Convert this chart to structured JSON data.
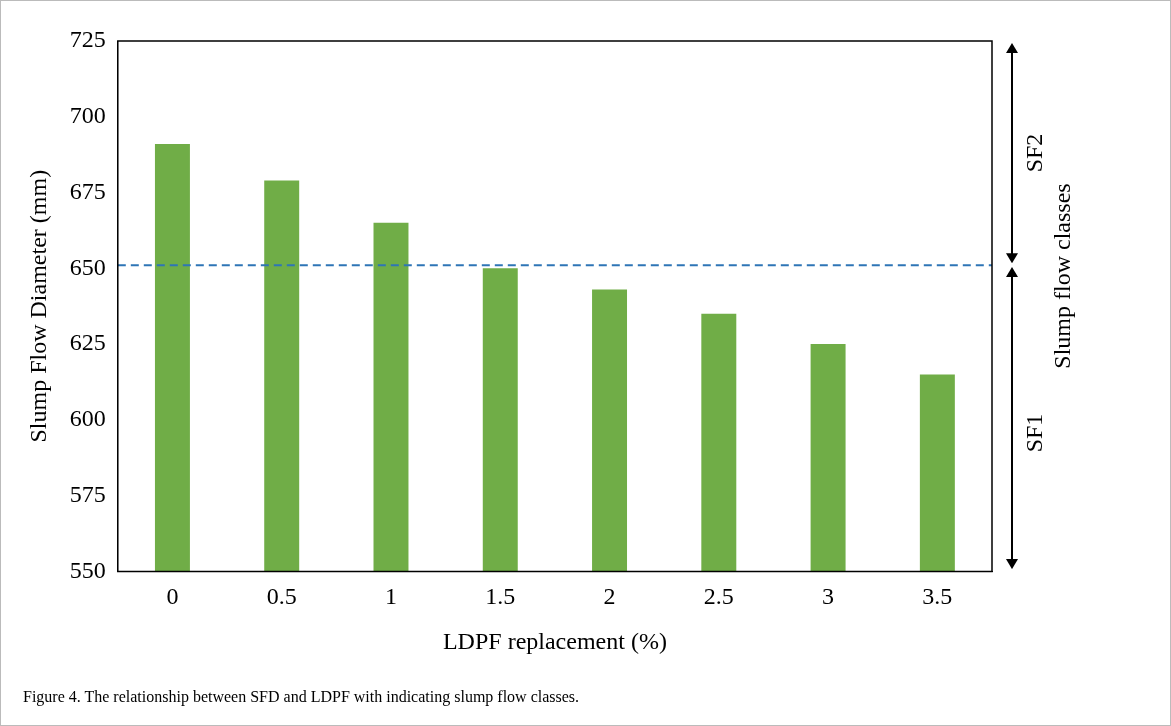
{
  "chart_data": {
    "type": "bar",
    "xlabel": "LDPF replacement (%)",
    "ylabel": "Slump Flow Diameter (mm)",
    "categories": [
      "0",
      "0.5",
      "1",
      "1.5",
      "2",
      "2.5",
      "3",
      "3.5"
    ],
    "values": [
      691,
      679,
      665,
      650,
      643,
      635,
      625,
      615
    ],
    "color": "#70ad47",
    "ylim": [
      550,
      725
    ],
    "yticks": [
      550,
      575,
      600,
      625,
      650,
      675,
      700,
      725
    ],
    "grid": false,
    "legend": false,
    "ref_lines": [
      {
        "axis": "y",
        "value": 651,
        "color": "#2e75b6",
        "line_style": "dashed"
      }
    ],
    "annotations": [
      "SF2",
      "SF1",
      "Slump flow classes",
      "Figure 4. The relationship between SFD and LDPF with indicating slump flow classes."
    ]
  }
}
